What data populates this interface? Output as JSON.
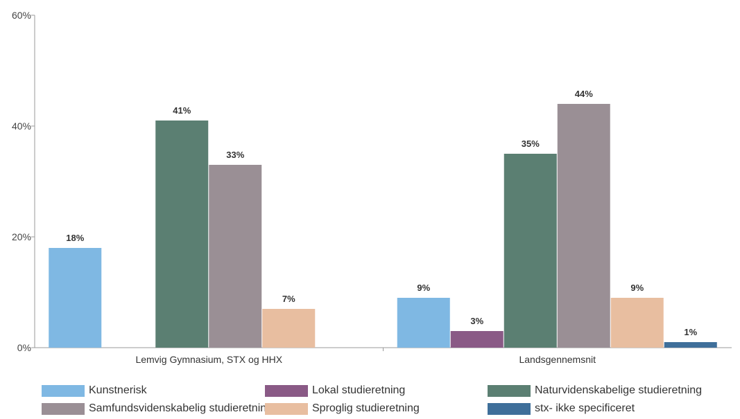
{
  "chart_data": {
    "type": "bar",
    "categories": [
      "Lemvig Gymnasium, STX og HHX",
      "Landsgennemsnit"
    ],
    "ylim": [
      0,
      60
    ],
    "yticks": [
      0,
      20,
      40,
      60
    ],
    "ytick_labels": [
      "0%",
      "20%",
      "40%",
      "60%"
    ],
    "grid": false,
    "legend_position": "bottom",
    "series": [
      {
        "name": "Kunstnerisk",
        "color": "#7fb8e3",
        "values": [
          18,
          9
        ],
        "labels": [
          "18%",
          "9%"
        ]
      },
      {
        "name": "Lokal studieretning",
        "color": "#8a5a86",
        "values": [
          null,
          3
        ],
        "labels": [
          null,
          "3%"
        ]
      },
      {
        "name": "Naturvidenskabelige studieretning",
        "color": "#5b7f72",
        "values": [
          41,
          35
        ],
        "labels": [
          "41%",
          "35%"
        ]
      },
      {
        "name": "Samfundsvidenskabelig studieretning",
        "color": "#9a8f95",
        "values": [
          33,
          44
        ],
        "labels": [
          "33%",
          "44%"
        ]
      },
      {
        "name": "Sproglig studieretning",
        "color": "#e8bea0",
        "values": [
          7,
          9
        ],
        "labels": [
          "7%",
          "9%"
        ]
      },
      {
        "name": "stx- ikke specificeret",
        "color": "#3f6f9a",
        "values": [
          null,
          1
        ],
        "labels": [
          null,
          "1%"
        ]
      }
    ]
  }
}
